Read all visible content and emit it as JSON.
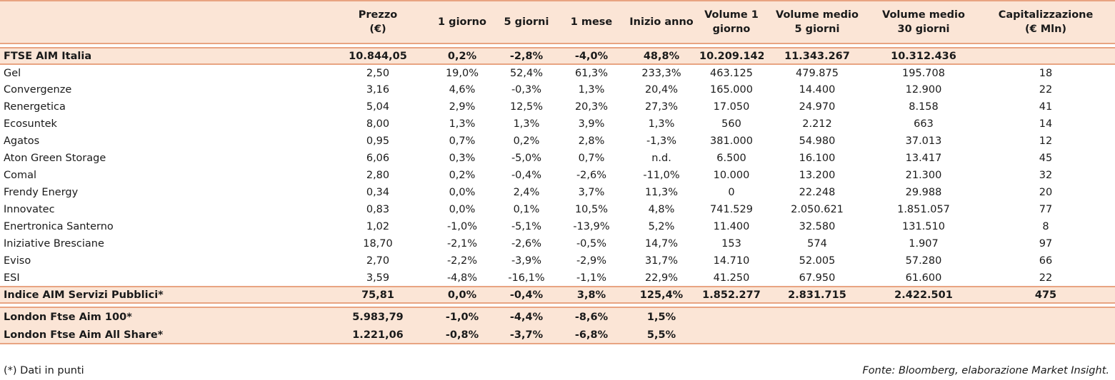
{
  "headers": [
    "",
    "Prezzo\n(€)",
    "1 giorno",
    "5 giorni",
    "1 mese",
    "Inizio anno",
    "Volume 1\ngiorno",
    "Volume medio\n5 giorni",
    "Volume medio\n30 giorni",
    "Capitalizzazione\n(€ Mln)"
  ],
  "ftse_aim": [
    "FTSE AIM Italia",
    "10.844,05",
    "0,2%",
    "-2,8%",
    "-4,0%",
    "48,8%",
    "10.209.142",
    "11.343.267",
    "10.312.436",
    ""
  ],
  "rows": [
    [
      "Gel",
      "2,50",
      "19,0%",
      "52,4%",
      "61,3%",
      "233,3%",
      "463.125",
      "479.875",
      "195.708",
      "18"
    ],
    [
      "Convergenze",
      "3,16",
      "4,6%",
      "-0,3%",
      "1,3%",
      "20,4%",
      "165.000",
      "14.400",
      "12.900",
      "22"
    ],
    [
      "Renergetica",
      "5,04",
      "2,9%",
      "12,5%",
      "20,3%",
      "27,3%",
      "17.050",
      "24.970",
      "8.158",
      "41"
    ],
    [
      "Ecosuntek",
      "8,00",
      "1,3%",
      "1,3%",
      "3,9%",
      "1,3%",
      "560",
      "2.212",
      "663",
      "14"
    ],
    [
      "Agatos",
      "0,95",
      "0,7%",
      "0,2%",
      "2,8%",
      "-1,3%",
      "381.000",
      "54.980",
      "37.013",
      "12"
    ],
    [
      "Aton Green Storage",
      "6,06",
      "0,3%",
      "-5,0%",
      "0,7%",
      "n.d.",
      "6.500",
      "16.100",
      "13.417",
      "45"
    ],
    [
      "Comal",
      "2,80",
      "0,2%",
      "-0,4%",
      "-2,6%",
      "-11,0%",
      "10.000",
      "13.200",
      "21.300",
      "32"
    ],
    [
      "Frendy Energy",
      "0,34",
      "0,0%",
      "2,4%",
      "3,7%",
      "11,3%",
      "0",
      "22.248",
      "29.988",
      "20"
    ],
    [
      "Innovatec",
      "0,83",
      "0,0%",
      "0,1%",
      "10,5%",
      "4,8%",
      "741.529",
      "2.050.621",
      "1.851.057",
      "77"
    ],
    [
      "Enertronica Santerno",
      "1,02",
      "-1,0%",
      "-5,1%",
      "-13,9%",
      "5,2%",
      "11.400",
      "32.580",
      "131.510",
      "8"
    ],
    [
      "Iniziative Bresciane",
      "18,70",
      "-2,1%",
      "-2,6%",
      "-0,5%",
      "14,7%",
      "153",
      "574",
      "1.907",
      "97"
    ],
    [
      "Eviso",
      "2,70",
      "-2,2%",
      "-3,9%",
      "-2,9%",
      "31,7%",
      "14.710",
      "52.005",
      "57.280",
      "66"
    ],
    [
      "ESI",
      "3,59",
      "-4,8%",
      "-16,1%",
      "-1,1%",
      "22,9%",
      "41.250",
      "67.950",
      "61.600",
      "22"
    ]
  ],
  "indice_servizi": [
    "Indice AIM Servizi Pubblici*",
    "75,81",
    "0,0%",
    "-0,4%",
    "3,8%",
    "125,4%",
    "1.852.277",
    "2.831.715",
    "2.422.501",
    "475"
  ],
  "london": [
    [
      "London Ftse Aim 100*",
      "5.983,79",
      "-1,0%",
      "-4,4%",
      "-8,6%",
      "1,5%",
      "",
      "",
      "",
      ""
    ],
    [
      "London Ftse Aim All Share*",
      "1.221,06",
      "-0,8%",
      "-3,7%",
      "-6,8%",
      "5,5%",
      "",
      "",
      "",
      ""
    ]
  ],
  "footnote": "(*) Dati in punti",
  "source": "Fonte: Bloomberg, elaborazione Market Insight.",
  "colors": {
    "band": "#fbe5d6",
    "rule": "#e8a482"
  }
}
